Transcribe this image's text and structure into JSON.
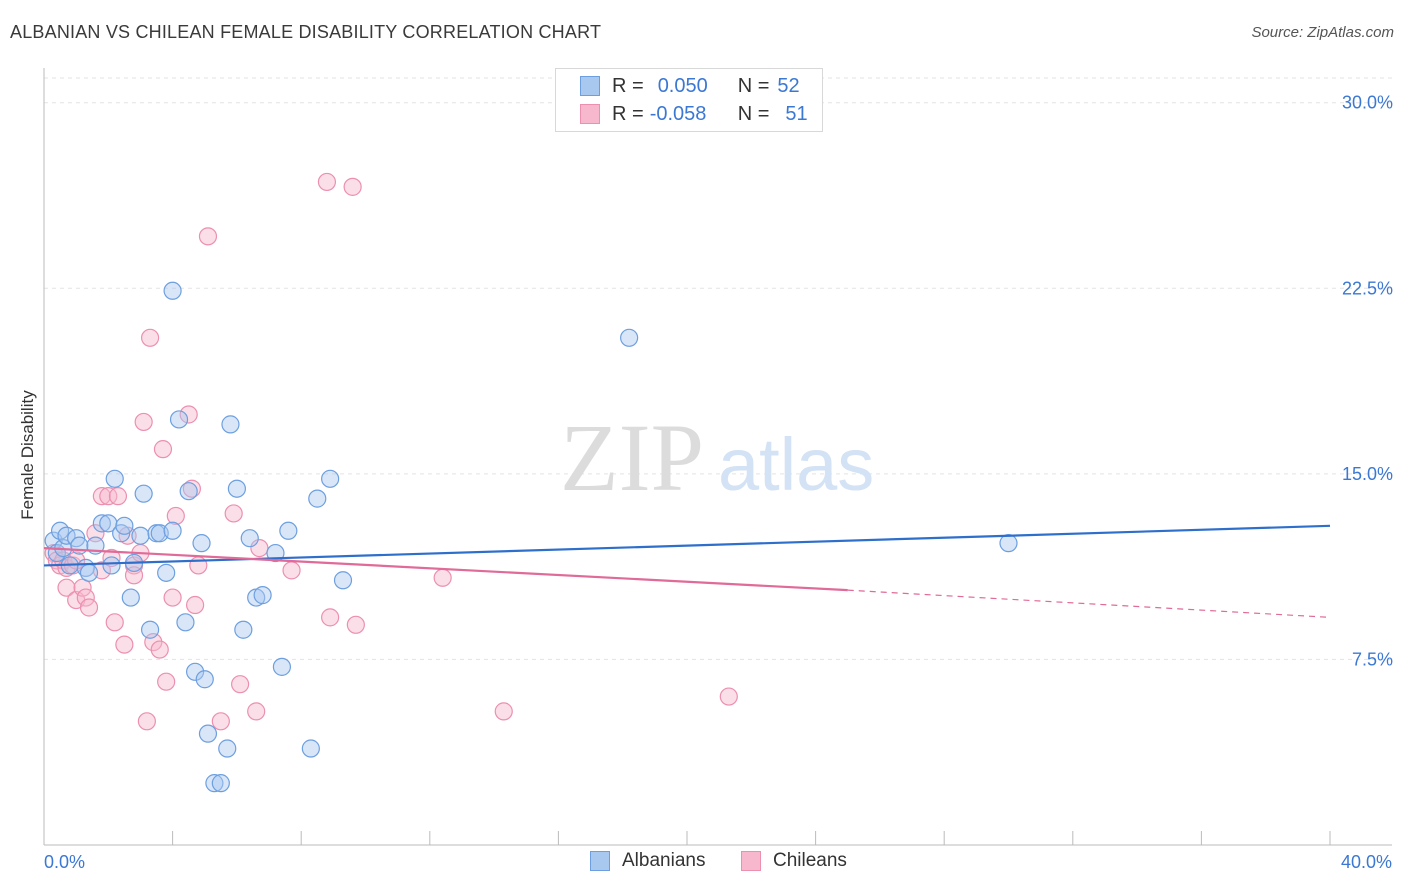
{
  "title": "ALBANIAN VS CHILEAN FEMALE DISABILITY CORRELATION CHART",
  "source": "Source: ZipAtlas.com",
  "watermark": {
    "zip": "ZIP",
    "atlas": "atlas"
  },
  "legend_top": {
    "rows": [
      {
        "r_label": "R =",
        "r_value": "0.050",
        "n_label": "N =",
        "n_value": "52"
      },
      {
        "r_label": "R =",
        "r_value": "-0.058",
        "n_label": "N =",
        "n_value": "51"
      }
    ]
  },
  "legend_bottom": {
    "albanians": "Albanians",
    "chileans": "Chileans"
  },
  "colors": {
    "albanian_fill": "#a9c8f0",
    "albanian_stroke": "#6d9fe0",
    "albanian_line": "#2f6fcc",
    "chilean_fill": "#f7b8cd",
    "chilean_stroke": "#ec8fb0",
    "chilean_line": "#e06a98",
    "tick_text": "#3b78d4"
  },
  "chart_data": {
    "type": "scatter",
    "title": "ALBANIAN VS CHILEAN FEMALE DISABILITY CORRELATION CHART",
    "xlabel": "",
    "ylabel": "Female Disability",
    "xlim": [
      0,
      40
    ],
    "ylim": [
      0,
      31
    ],
    "x_tick_labels": [
      "0.0%",
      "40.0%"
    ],
    "y_ticks": [
      7.5,
      15.0,
      22.5,
      30.0
    ],
    "y_tick_labels": [
      "7.5%",
      "15.0%",
      "22.5%",
      "30.0%"
    ],
    "grid": true,
    "series": [
      {
        "name": "Albanians",
        "r": 0.05,
        "n": 52,
        "trend": {
          "x0": 0,
          "y0": 11.3,
          "x1": 40,
          "y1": 12.9
        },
        "points": [
          [
            0.3,
            12.3
          ],
          [
            0.4,
            11.8
          ],
          [
            0.5,
            12.7
          ],
          [
            0.6,
            12.0
          ],
          [
            0.7,
            12.5
          ],
          [
            0.8,
            11.3
          ],
          [
            1.0,
            12.4
          ],
          [
            1.1,
            12.1
          ],
          [
            1.3,
            11.2
          ],
          [
            1.4,
            11.0
          ],
          [
            1.6,
            12.1
          ],
          [
            1.8,
            13.0
          ],
          [
            2.0,
            13.0
          ],
          [
            2.1,
            11.3
          ],
          [
            2.2,
            14.8
          ],
          [
            2.4,
            12.6
          ],
          [
            2.5,
            12.9
          ],
          [
            2.7,
            10.0
          ],
          [
            2.8,
            11.4
          ],
          [
            3.0,
            12.5
          ],
          [
            3.1,
            14.2
          ],
          [
            3.3,
            8.7
          ],
          [
            3.5,
            12.6
          ],
          [
            3.6,
            12.6
          ],
          [
            3.8,
            11.0
          ],
          [
            4.0,
            12.7
          ],
          [
            4.0,
            22.4
          ],
          [
            4.2,
            17.2
          ],
          [
            4.4,
            9.0
          ],
          [
            4.5,
            14.3
          ],
          [
            4.7,
            7.0
          ],
          [
            4.9,
            12.2
          ],
          [
            5.0,
            6.7
          ],
          [
            5.1,
            4.5
          ],
          [
            5.3,
            2.5
          ],
          [
            5.5,
            2.5
          ],
          [
            5.7,
            3.9
          ],
          [
            5.8,
            17.0
          ],
          [
            6.0,
            14.4
          ],
          [
            6.2,
            8.7
          ],
          [
            6.4,
            12.4
          ],
          [
            6.6,
            10.0
          ],
          [
            6.8,
            10.1
          ],
          [
            7.2,
            11.8
          ],
          [
            7.4,
            7.2
          ],
          [
            7.6,
            12.7
          ],
          [
            8.3,
            3.9
          ],
          [
            8.5,
            14.0
          ],
          [
            8.9,
            14.8
          ],
          [
            9.3,
            10.7
          ],
          [
            18.2,
            20.5
          ],
          [
            30.0,
            12.2
          ]
        ]
      },
      {
        "name": "Chileans",
        "r": -0.058,
        "n": 51,
        "trend": {
          "x0": 0,
          "y0": 12.0,
          "x1": 25,
          "y1": 10.3,
          "dash_x1": 40,
          "dash_y1": 9.2
        },
        "points": [
          [
            0.3,
            11.8
          ],
          [
            0.4,
            11.5
          ],
          [
            0.5,
            11.3
          ],
          [
            0.6,
            11.5
          ],
          [
            0.7,
            11.2
          ],
          [
            0.7,
            10.4
          ],
          [
            0.9,
            11.3
          ],
          [
            1.0,
            11.5
          ],
          [
            1.0,
            9.9
          ],
          [
            1.2,
            10.4
          ],
          [
            1.3,
            10.0
          ],
          [
            1.4,
            9.6
          ],
          [
            1.6,
            12.6
          ],
          [
            1.8,
            11.1
          ],
          [
            1.8,
            14.1
          ],
          [
            2.0,
            14.1
          ],
          [
            2.1,
            11.6
          ],
          [
            2.2,
            9.0
          ],
          [
            2.3,
            14.1
          ],
          [
            2.5,
            8.1
          ],
          [
            2.6,
            12.5
          ],
          [
            2.8,
            11.3
          ],
          [
            2.8,
            10.9
          ],
          [
            3.0,
            11.8
          ],
          [
            3.1,
            17.1
          ],
          [
            3.2,
            5.0
          ],
          [
            3.3,
            20.5
          ],
          [
            3.4,
            8.2
          ],
          [
            3.6,
            7.9
          ],
          [
            3.7,
            16.0
          ],
          [
            3.8,
            6.6
          ],
          [
            4.0,
            10.0
          ],
          [
            4.1,
            13.3
          ],
          [
            4.5,
            17.4
          ],
          [
            4.6,
            14.4
          ],
          [
            4.7,
            9.7
          ],
          [
            4.8,
            11.3
          ],
          [
            5.1,
            24.6
          ],
          [
            5.5,
            5.0
          ],
          [
            5.9,
            13.4
          ],
          [
            6.1,
            6.5
          ],
          [
            6.6,
            5.4
          ],
          [
            6.7,
            12.0
          ],
          [
            7.7,
            11.1
          ],
          [
            8.8,
            26.8
          ],
          [
            8.9,
            9.2
          ],
          [
            9.6,
            26.6
          ],
          [
            9.7,
            8.9
          ],
          [
            12.4,
            10.8
          ],
          [
            14.3,
            5.4
          ],
          [
            21.3,
            6.0
          ]
        ]
      }
    ]
  }
}
